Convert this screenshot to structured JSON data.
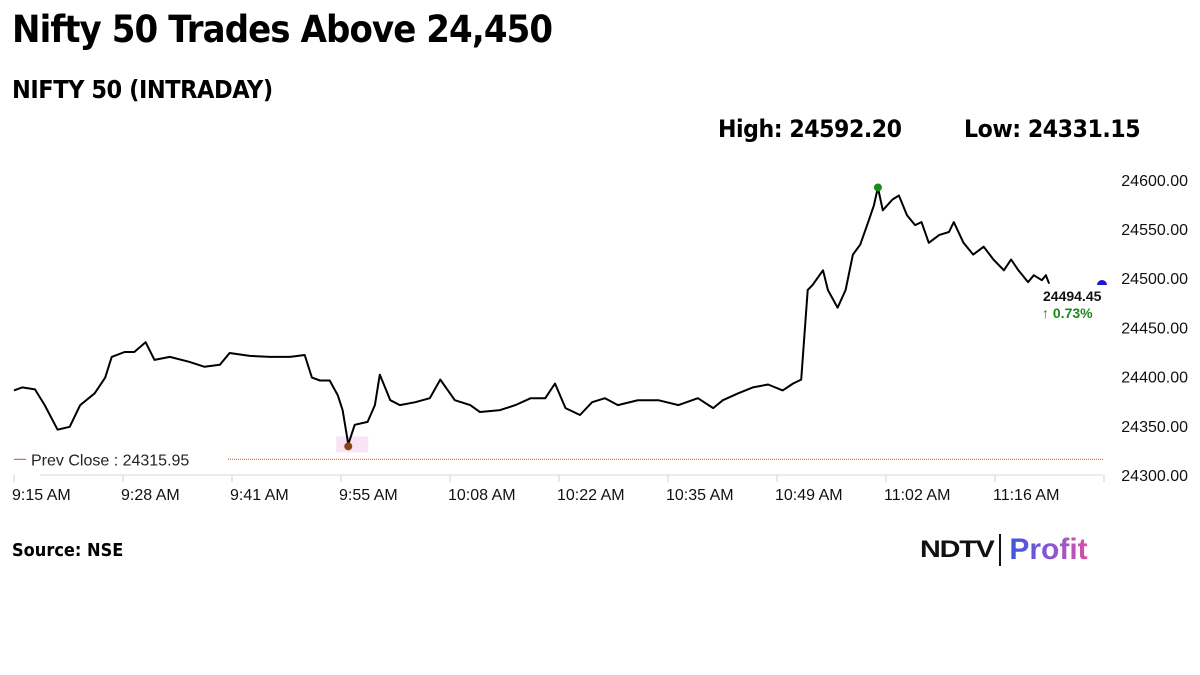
{
  "header": {
    "title": "Nifty 50 Trades Above 24,450",
    "subtitle": "NIFTY 50 (INTRADAY)",
    "high_label": "High: 24592.20",
    "low_label": "Low: 24331.15"
  },
  "footer": {
    "source": "Source: NSE",
    "logo_left": "NDTV",
    "logo_right": "Profit"
  },
  "colors": {
    "line": "#000000",
    "high_marker": "#1a8a1a",
    "low_marker": "#8b4513",
    "last_marker": "#1a1acc",
    "prev_close_line": "#c0502a",
    "change_up": "#1a8a1a",
    "axis_text": "#111111"
  },
  "chart_data": {
    "type": "line",
    "title": "NIFTY 50 (INTRADAY)",
    "xlabel": "",
    "ylabel": "",
    "ylim": [
      24300,
      24600
    ],
    "y_ticks": [
      "24600.00",
      "24550.00",
      "24500.00",
      "24450.00",
      "24400.00",
      "24350.00",
      "24300.00"
    ],
    "x_tick_labels": [
      "9:15 AM",
      "9:28 AM",
      "9:41 AM",
      "9:55 AM",
      "10:08 AM",
      "10:22 AM",
      "10:35 AM",
      "10:49 AM",
      "11:02 AM",
      "11:16 AM"
    ],
    "high": 24592.2,
    "low": 24331.15,
    "prev_close": 24315.95,
    "prev_close_label": "Prev Close : 24315.95",
    "last_value": "24494.45",
    "change_label": "↑ 0.73%",
    "grid": false,
    "series": [
      {
        "name": "NIFTY 50",
        "minutes_from_915": [
          0,
          1.0,
          2.6,
          3.8,
          5.4,
          6.9,
          8.2,
          10.0,
          11.3,
          12.1,
          13.7,
          14.9,
          16.3,
          17.4,
          19.3,
          21.7,
          23.6,
          25.5,
          26.7,
          29.2,
          31.7,
          34.2,
          36.0,
          36.9,
          37.9,
          39.1,
          40.1,
          40.7,
          41.4,
          42.2,
          43.8,
          44.7,
          45.3,
          46.6,
          47.8,
          49.7,
          51.5,
          52.8,
          54.6,
          56.5,
          57.7,
          60.2,
          62.1,
          64.0,
          65.8,
          67.0,
          68.3,
          70.1,
          71.6,
          73.2,
          74.8,
          77.3,
          79.8,
          82.3,
          84.7,
          86.6,
          87.8,
          89.7,
          91.5,
          93.4,
          95.2,
          96.5,
          97.5,
          98.3,
          98.9,
          100.2,
          100.8,
          102.0,
          103.0,
          103.9,
          104.8,
          105.8,
          106.5,
          107.0,
          107.6,
          108.8,
          109.6,
          110.6,
          111.6,
          112.4,
          113.3,
          114.6,
          115.8,
          116.4,
          117.6,
          118.8,
          120.1,
          121.3,
          122.6,
          123.5,
          124.4,
          125.6,
          126.3,
          127.3,
          127.8,
          128.2
        ],
        "values": [
          24386,
          24389,
          24387,
          24371,
          24346,
          24349,
          24371,
          24383,
          24399,
          24420,
          24425,
          24425,
          24435,
          24417,
          24420,
          24415,
          24410,
          24412,
          24424,
          24421,
          24420,
          24420,
          24422,
          24399,
          24396,
          24396,
          24381,
          24366,
          24331.15,
          24351,
          24354,
          24371,
          24402,
          24376,
          24371,
          24374,
          24378,
          24397,
          24376,
          24371,
          24364,
          24366,
          24371,
          24378,
          24378,
          24393,
          24368,
          24361,
          24374,
          24378,
          24371,
          24376,
          24376,
          24371,
          24378,
          24368,
          24376,
          24383,
          24389,
          24392,
          24386,
          24393,
          24397,
          24488,
          24493,
          24508,
          24488,
          24470,
          24488,
          24524,
          24534,
          24557,
          24574,
          24592.2,
          24569,
          24580,
          24584,
          24564,
          24554,
          24557,
          24536,
          24544,
          24547,
          24557,
          24536,
          24524,
          24532,
          24519,
          24508,
          24519,
          24508,
          24496,
          24503,
          24498,
          24503,
          24494.45
        ]
      }
    ]
  }
}
